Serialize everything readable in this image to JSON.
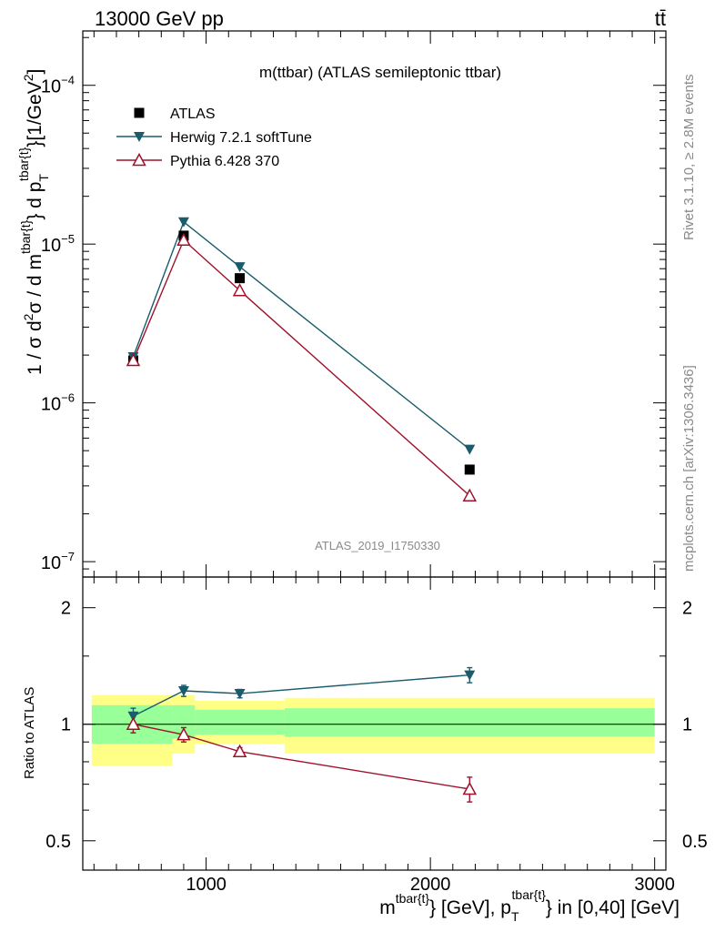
{
  "header": {
    "process": "13000 GeV pp",
    "final_state": "tt̄"
  },
  "side": {
    "rivet": "Rivet 3.1.10, ≥ 2.8M events",
    "source": "mcplots.cern.ch [arXiv:1306.3436]"
  },
  "colors": {
    "atlas": "#000000",
    "herwig": "#1a5c6b",
    "pythia": "#a0102a",
    "band_stat": "#99ff99",
    "band_total": "#ffff88"
  },
  "chart_data": [
    {
      "type": "line",
      "title": "m(ttbar) (ATLAS semileptonic ttbar)",
      "analysis_label": "ATLAS_2019_I1750330",
      "yscale": "log",
      "ylim": [
        8e-08,
        0.00022
      ],
      "xlim": [
        450,
        3050
      ],
      "ylabel": {
        "t1": "1 / σ d",
        "sup1": "2",
        "t2": "σ / d m",
        "sup2": "tbar{t}",
        "t3": "} d p",
        "sub": "T",
        "sup3": "tbar{t}",
        "t4": "}[1/GeV",
        "sup4": "2",
        "t5": "]"
      },
      "yticks": [
        {
          "value": 1e-07,
          "base": "10",
          "exp": "−7"
        },
        {
          "value": 1e-06,
          "base": "10",
          "exp": "−6"
        },
        {
          "value": 1e-05,
          "base": "10",
          "exp": "−5"
        },
        {
          "value": 0.0001,
          "base": "10",
          "exp": "−4"
        }
      ],
      "legend": [
        {
          "key": "atlas",
          "label": "ATLAS"
        },
        {
          "key": "herwig",
          "label": "Herwig 7.2.1 softTune"
        },
        {
          "key": "pythia",
          "label": "Pythia 6.428 370"
        }
      ],
      "series": [
        {
          "key": "atlas",
          "name": "ATLAS",
          "marker": "square",
          "x": [
            675,
            900,
            1150,
            2175
          ],
          "y": [
            1.85e-06,
            1.13e-05,
            6.1e-06,
            3.8e-07
          ]
        },
        {
          "key": "herwig",
          "name": "Herwig 7.2.1 softTune",
          "marker": "triangle-down",
          "x": [
            675,
            900,
            1150,
            2175
          ],
          "y": [
            1.95e-06,
            1.38e-05,
            7.2e-06,
            5.1e-07
          ]
        },
        {
          "key": "pythia",
          "name": "Pythia 6.428 370",
          "marker": "triangle-up-open",
          "x": [
            675,
            900,
            1150,
            2175
          ],
          "y": [
            1.85e-06,
            1.06e-05,
            5.1e-06,
            2.6e-07
          ]
        }
      ]
    },
    {
      "type": "line",
      "ylabel": "Ratio to ATLAS",
      "yscale": "log",
      "ylim": [
        0.42,
        2.4
      ],
      "xlim": [
        450,
        3050
      ],
      "xlabel": {
        "t1": "m",
        "sup1": "tbar{t}",
        "t2": "} [GeV], p",
        "sub": "T",
        "sup2": "tbar{t}",
        "t3": "} in [0,40] [GeV]"
      },
      "yticks": [
        {
          "value": 0.5,
          "label": "0.5"
        },
        {
          "value": 1,
          "label": "1"
        },
        {
          "value": 2,
          "label": "2"
        }
      ],
      "xticks": [
        {
          "value": 1000,
          "label": "1000"
        },
        {
          "value": 2000,
          "label": "2000"
        },
        {
          "value": 3000,
          "label": "3000"
        }
      ],
      "bands": [
        {
          "x0": 490,
          "x1": 850,
          "stat": [
            0.89,
            1.12
          ],
          "total": [
            0.78,
            1.19
          ]
        },
        {
          "x0": 850,
          "x1": 950,
          "stat": [
            0.92,
            1.12
          ],
          "total": [
            0.84,
            1.19
          ]
        },
        {
          "x0": 950,
          "x1": 1350,
          "stat": [
            0.94,
            1.09
          ],
          "total": [
            0.89,
            1.15
          ]
        },
        {
          "x0": 1350,
          "x1": 3000,
          "stat": [
            0.93,
            1.1
          ],
          "total": [
            0.84,
            1.17
          ]
        }
      ],
      "series": [
        {
          "key": "herwig",
          "name": "Herwig 7.2.1 softTune",
          "marker": "triangle-down",
          "x": [
            675,
            900,
            1150,
            2175
          ],
          "y": [
            1.05,
            1.22,
            1.2,
            1.34
          ],
          "err": [
            0.05,
            0.04,
            0.03,
            0.06
          ]
        },
        {
          "key": "pythia",
          "name": "Pythia 6.428 370",
          "marker": "triangle-up-open",
          "x": [
            675,
            900,
            1150,
            2175
          ],
          "y": [
            1.0,
            0.94,
            0.85,
            0.68
          ],
          "err": [
            0.05,
            0.04,
            0.02,
            0.05
          ]
        }
      ]
    }
  ]
}
